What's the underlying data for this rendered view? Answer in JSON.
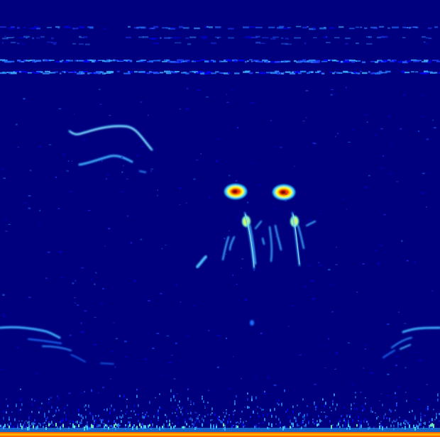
{
  "image": {
    "kind": "spectrogram",
    "colormap": "jet",
    "palette": {
      "background": "#00007f",
      "low": "#0000ff",
      "mid_low": "#00bfff",
      "mid": "#7fffbf",
      "mid_high": "#ffff00",
      "high": "#ff4000",
      "peak": "#7f0000"
    },
    "axes_shown": false,
    "text_shown": false
  }
}
